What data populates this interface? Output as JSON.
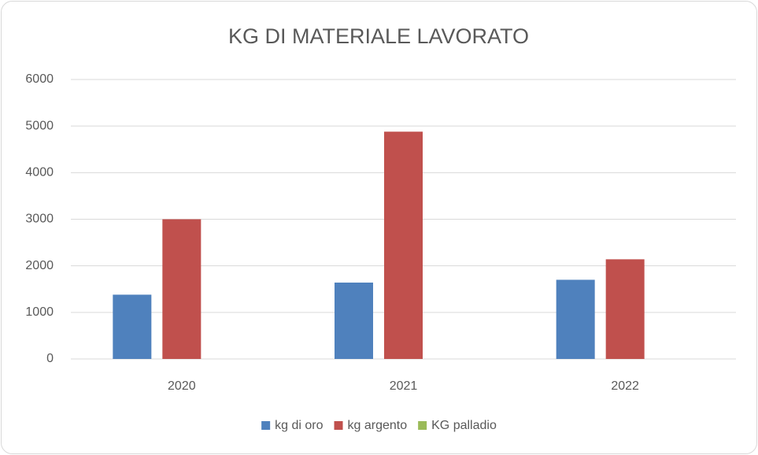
{
  "chart_data": {
    "type": "bar",
    "title": "KG DI MATERIALE LAVORATO",
    "categories": [
      "2020",
      "2021",
      "2022"
    ],
    "series": [
      {
        "name": "kg di oro",
        "color": "#4f81bd",
        "values": [
          1380,
          1640,
          1700
        ]
      },
      {
        "name": "kg argento",
        "color": "#c0504d",
        "values": [
          3000,
          4880,
          2140
        ]
      },
      {
        "name": "KG palladio",
        "color": "#9bbb59",
        "values": [
          0,
          0,
          0
        ]
      }
    ],
    "ylim": [
      0,
      6000
    ],
    "yticks": [
      0,
      1000,
      2000,
      3000,
      4000,
      5000,
      6000
    ],
    "grid": true,
    "legend": "bottom"
  }
}
